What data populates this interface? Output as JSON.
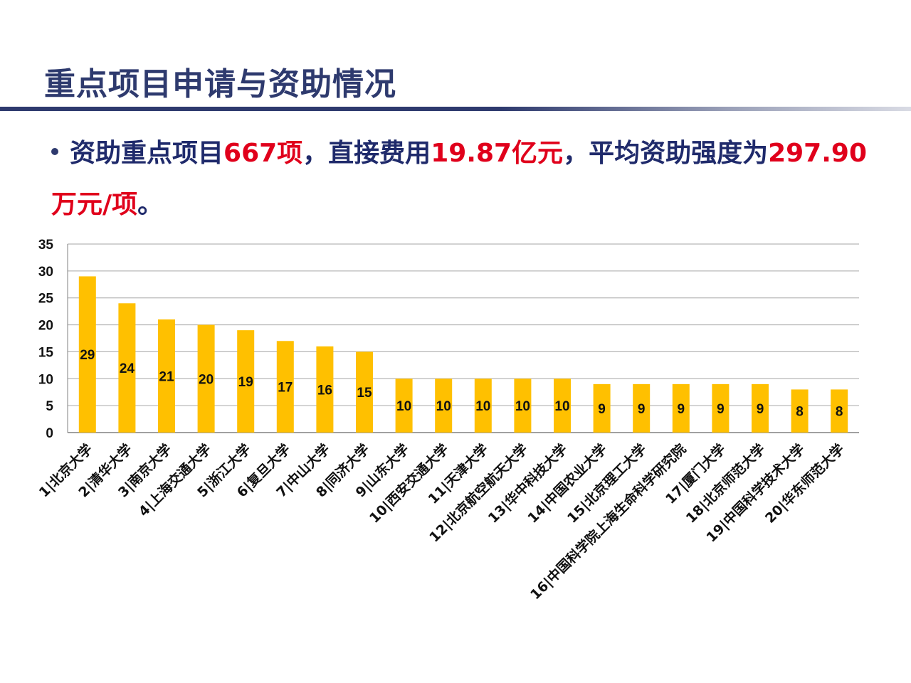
{
  "slide": {
    "title": "重点项目申请与资助情况",
    "summary": {
      "p1": "资助重点项目",
      "count": "667项",
      "p2": "，直接费用",
      "cost": "19.87亿元",
      "p3": "，平均资助强度为",
      "avg": "297.90万元/项",
      "p4": "。"
    },
    "colors": {
      "title": "#2e3a6e",
      "highlight": "#e0001b",
      "bar": "#ffc000"
    }
  },
  "chart_data": {
    "type": "bar",
    "categories": [
      "1|北京大学",
      "2|清华大学",
      "3|南京大学",
      "4|上海交通大学",
      "5|浙江大学",
      "6|复旦大学",
      "7|中山大学",
      "8|同济大学",
      "9|山东大学",
      "10|西安交通大学",
      "11|天津大学",
      "12|北京航空航天大学",
      "13|华中科技大学",
      "14|中国农业大学",
      "15|北京理工大学",
      "16|中国科学院上海生命科学研究院",
      "17|厦门大学",
      "18|北京师范大学",
      "19|中国科学技术大学",
      "20|华东师范大学"
    ],
    "values": [
      29,
      24,
      21,
      20,
      19,
      17,
      16,
      15,
      10,
      10,
      10,
      10,
      10,
      9,
      9,
      9,
      9,
      9,
      8,
      8
    ],
    "ylim": [
      0,
      35
    ],
    "yticks": [
      0,
      5,
      10,
      15,
      20,
      25,
      30,
      35
    ],
    "grid": true,
    "data_labels": "inside-middle",
    "bar_color": "#ffc000"
  }
}
